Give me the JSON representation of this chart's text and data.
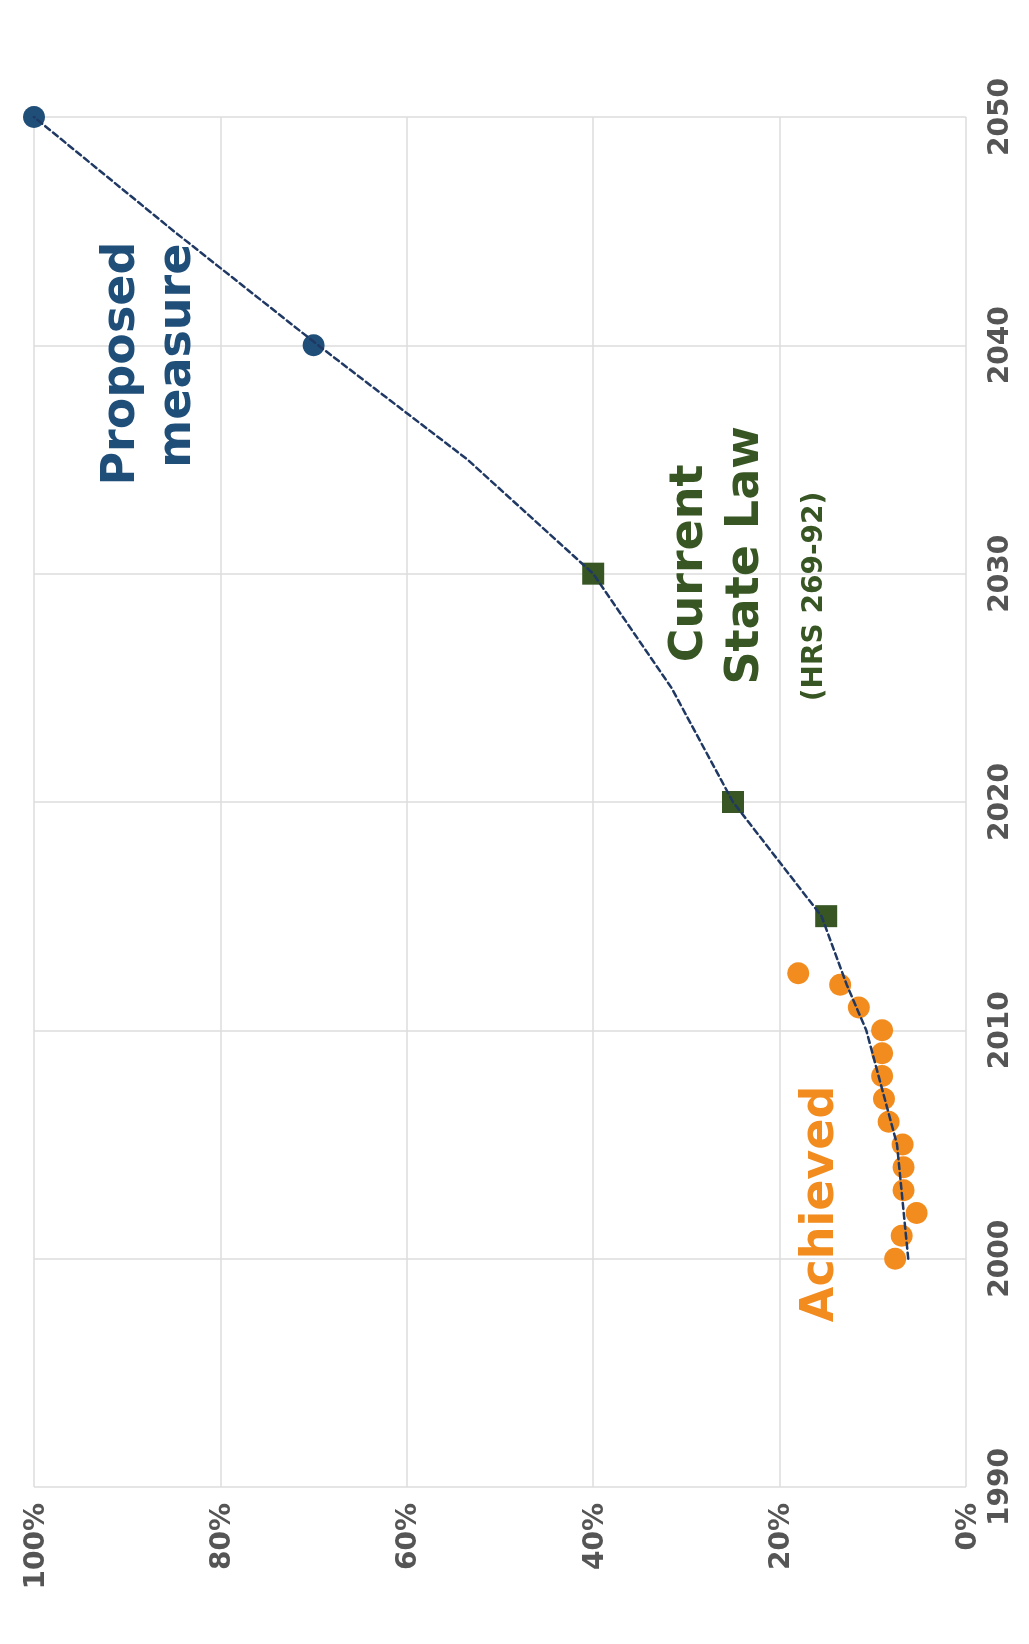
{
  "chart_data": {
    "type": "scatter",
    "xlim": [
      100,
      0
    ],
    "xticks": [
      {
        "value": 100,
        "label": "100%"
      },
      {
        "value": 80,
        "label": "80%"
      },
      {
        "value": 60,
        "label": "60%"
      },
      {
        "value": 40,
        "label": "40%"
      },
      {
        "value": 20,
        "label": "20%"
      },
      {
        "value": 0,
        "label": "0%"
      }
    ],
    "ylim": [
      1990,
      2050
    ],
    "yticks": [
      1990,
      2000,
      2010,
      2020,
      2030,
      2040,
      2050
    ],
    "grid": true,
    "legend": false,
    "annotations": [
      "(HRS 269-92)"
    ],
    "series": [
      {
        "type": "line",
        "color": "#1f3864",
        "marker": "none",
        "line_style": "dashed",
        "x": [
          6.2,
          7.4,
          10.7,
          12.8,
          15.5,
          25,
          31.6,
          40,
          53.5,
          69.5,
          85,
          100
        ],
        "values": [
          2000,
          2005,
          2010,
          2012,
          2015,
          2020,
          2025,
          2030,
          2035,
          2040,
          2045,
          2050
        ]
      },
      {
        "name": "Proposed measure",
        "color": "#1f4e79",
        "marker": "circle",
        "x": [
          70,
          100
        ],
        "values": [
          2040,
          2050
        ]
      },
      {
        "name": "Current State Law",
        "color": "#375623",
        "marker": "square",
        "x": [
          15,
          25,
          40
        ],
        "values": [
          2015,
          2020,
          2030
        ]
      },
      {
        "name": "Achieved",
        "color": "#f28c1e",
        "marker": "circle",
        "x": [
          7.6,
          6.9,
          5.3,
          6.7,
          6.7,
          6.8,
          8.3,
          8.8,
          9.0,
          9.0,
          9.0,
          11.5,
          13.5,
          18
        ],
        "values": [
          2000,
          2001,
          2002,
          2003,
          2004,
          2005,
          2006,
          2007,
          2008,
          2009,
          2010,
          2011,
          2012,
          2012.5
        ]
      }
    ]
  }
}
